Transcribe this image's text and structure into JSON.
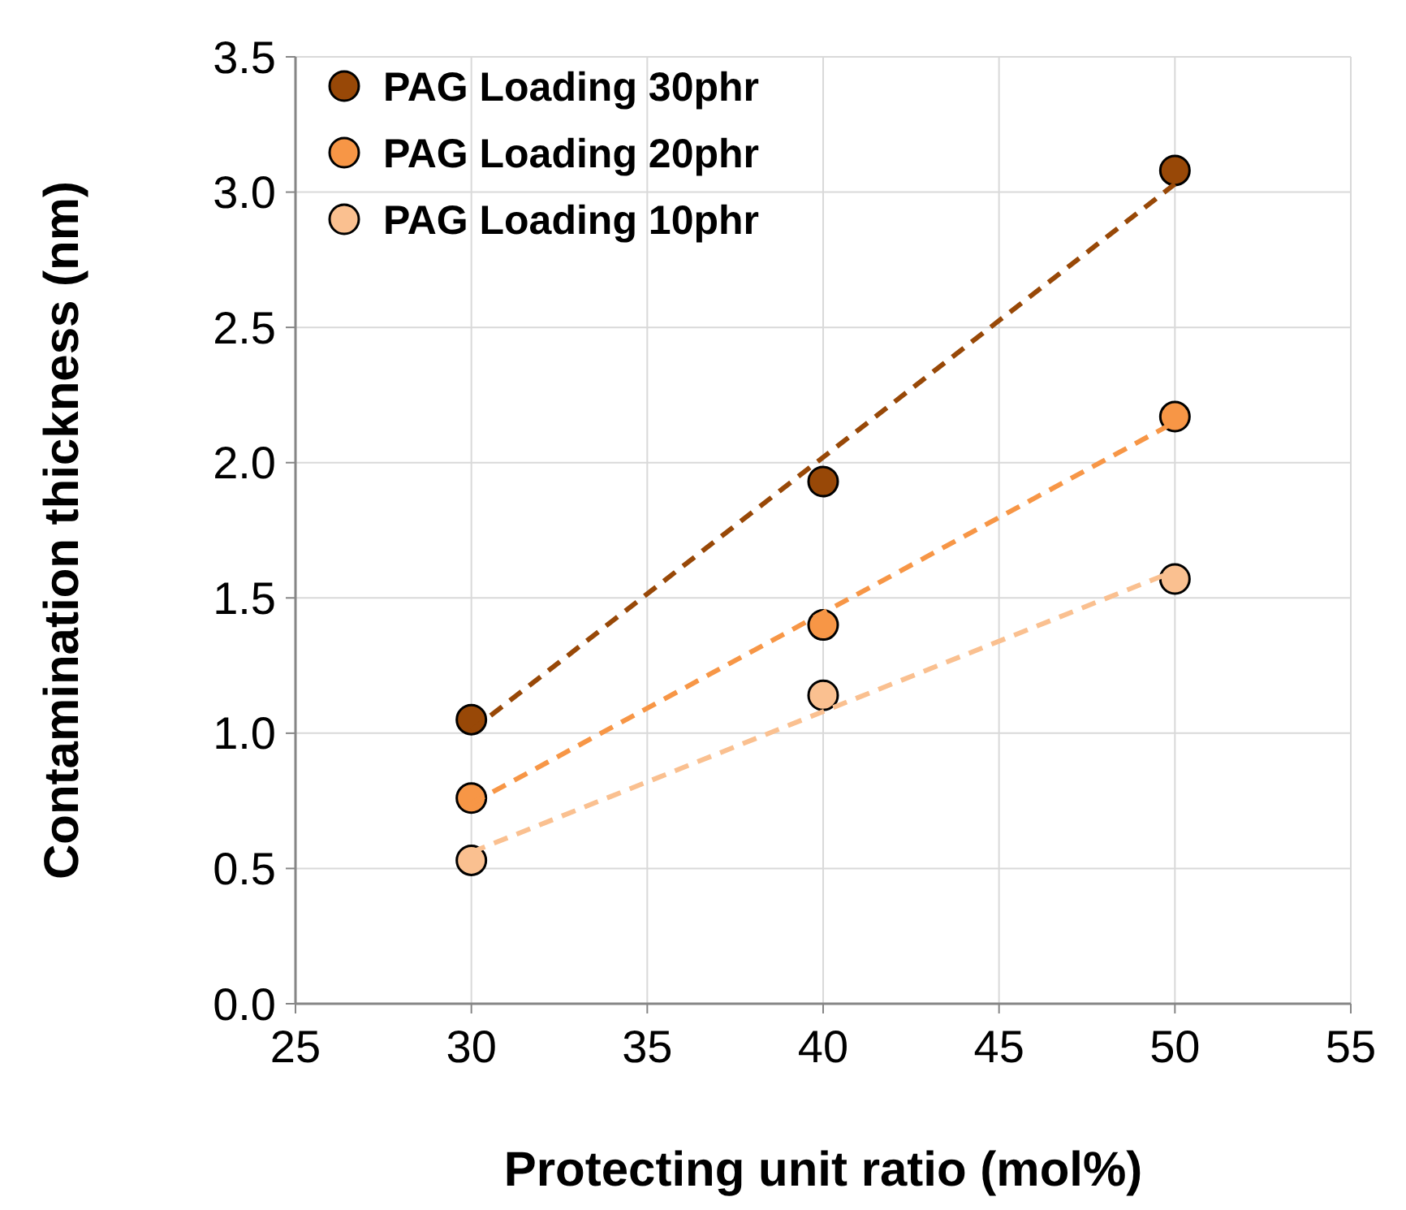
{
  "chart_data": {
    "type": "scatter",
    "xlabel": "Protecting unit ratio (mol%)",
    "ylabel": "Contamination thickness (nm)",
    "xlim": [
      25,
      55
    ],
    "xticks": [
      25,
      30,
      35,
      40,
      45,
      50,
      55
    ],
    "ylim": [
      0,
      3.5
    ],
    "yticks": [
      {
        "value": 0,
        "label": "0.0"
      },
      {
        "value": 0.5,
        "label": "0.5"
      },
      {
        "value": 1,
        "label": "1.0"
      },
      {
        "value": 1.5,
        "label": "1.5"
      },
      {
        "value": 2,
        "label": "2.0"
      },
      {
        "value": 2.5,
        "label": "2.5"
      },
      {
        "value": 3,
        "label": "3.0"
      },
      {
        "value": 3.5,
        "label": "3.5"
      }
    ],
    "grid": true,
    "legend": "top left",
    "marker": "circle",
    "series": [
      {
        "name": "PAG Loading 30phr",
        "color": "#984807",
        "x": [
          30,
          40,
          50
        ],
        "values": [
          1.05,
          1.93,
          3.08
        ]
      },
      {
        "name": "PAG Loading 20phr",
        "color": "#f79646",
        "x": [
          30,
          40,
          50
        ],
        "values": [
          0.76,
          1.4,
          2.17
        ]
      },
      {
        "name": "PAG Loading 10phr",
        "color": "#fac090",
        "x": [
          30,
          40,
          50
        ],
        "values": [
          0.53,
          1.14,
          1.57
        ]
      },
      {
        "type": "line",
        "color": "#984807",
        "x": [
          30,
          50
        ],
        "values": [
          1.01,
          3.03
        ],
        "marker": "none",
        "line_style": "dashed"
      },
      {
        "type": "line",
        "color": "#f79646",
        "x": [
          30,
          50
        ],
        "values": [
          0.74,
          2.15
        ],
        "marker": "none",
        "line_style": "dashed"
      },
      {
        "type": "line",
        "color": "#fac090",
        "x": [
          30,
          50
        ],
        "values": [
          0.56,
          1.6
        ],
        "marker": "none",
        "line_style": "dashed"
      }
    ]
  }
}
